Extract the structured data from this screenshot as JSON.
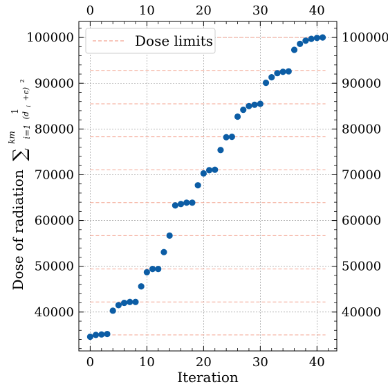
{
  "chart_data": {
    "type": "scatter",
    "xlabel": "Iteration",
    "ylabel": "Dose of radiation",
    "ylabel_formula": {
      "sum": "∑",
      "upper": "km",
      "lower": "i=1",
      "numerator": "1",
      "denominator": "(d",
      "denominator_sub": "i",
      "denominator_rest": "+ϵ)",
      "denominator_exp": "2"
    },
    "xlim": [
      -2,
      43.5
    ],
    "ylim": [
      31500,
      103500
    ],
    "x_ticks": [
      0,
      10,
      20,
      30,
      40
    ],
    "y_ticks": [
      40000,
      50000,
      60000,
      70000,
      80000,
      90000,
      100000
    ],
    "x_tick_labels": [
      "0",
      "10",
      "20",
      "30",
      "40"
    ],
    "y_tick_labels": [
      "40000",
      "50000",
      "60000",
      "70000",
      "80000",
      "90000",
      "100000"
    ],
    "grid": true,
    "legend_position": "top-left",
    "legend_label": "Dose limits",
    "marker_color": "#0c5da5",
    "limit_color": "#f4a592",
    "dose_limits": [
      35000,
      42200,
      49400,
      56700,
      63900,
      71100,
      78300,
      85500,
      92800,
      100000
    ],
    "x": [
      0,
      1,
      2,
      3,
      4,
      5,
      6,
      7,
      8,
      9,
      10,
      11,
      12,
      13,
      14,
      15,
      16,
      17,
      18,
      19,
      20,
      21,
      22,
      23,
      24,
      25,
      26,
      27,
      28,
      29,
      30,
      31,
      32,
      33,
      34,
      35,
      36,
      37,
      38,
      39,
      40,
      41
    ],
    "y": [
      34600,
      35000,
      35100,
      35200,
      40300,
      41500,
      42000,
      42200,
      42200,
      45600,
      48700,
      49400,
      49400,
      53100,
      56700,
      63300,
      63600,
      63900,
      63900,
      67700,
      70300,
      71000,
      71100,
      75400,
      78200,
      78300,
      82700,
      84200,
      85000,
      85300,
      85500,
      90100,
      91300,
      92200,
      92500,
      92600,
      97300,
      98600,
      99300,
      99700,
      99900,
      100000
    ]
  }
}
